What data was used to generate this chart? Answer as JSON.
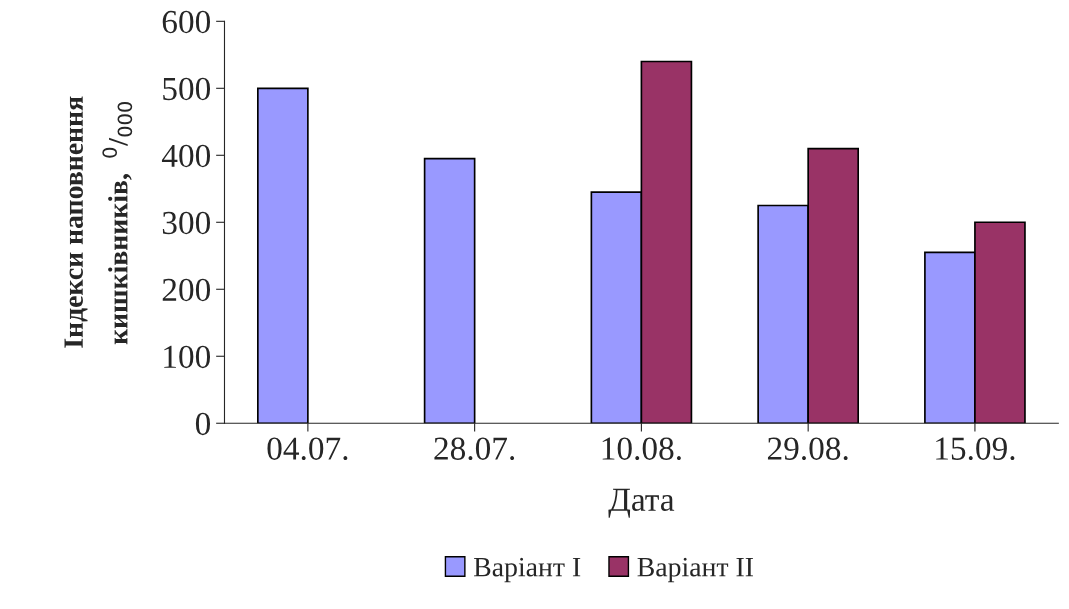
{
  "chart_data": {
    "type": "bar",
    "xlabel": "Дата",
    "ylabel": "Індекси наповнення\nкишківників,  $^{0}$/$_{000}$",
    "categories": [
      "04.07.",
      "28.07.",
      "10.08.",
      "29.08.",
      "15.09."
    ],
    "series": [
      {
        "name": "Варіант I",
        "color": "#9999ff",
        "values": [
          500,
          395,
          345,
          325,
          255
        ]
      },
      {
        "name": "Варіант II",
        "color": "#993366",
        "values": [
          null,
          null,
          540,
          410,
          300
        ]
      }
    ],
    "ylim": [
      0,
      600
    ],
    "yticks": [
      0,
      100,
      200,
      300,
      400,
      500,
      600
    ],
    "grid": false,
    "legend": "bottom"
  }
}
